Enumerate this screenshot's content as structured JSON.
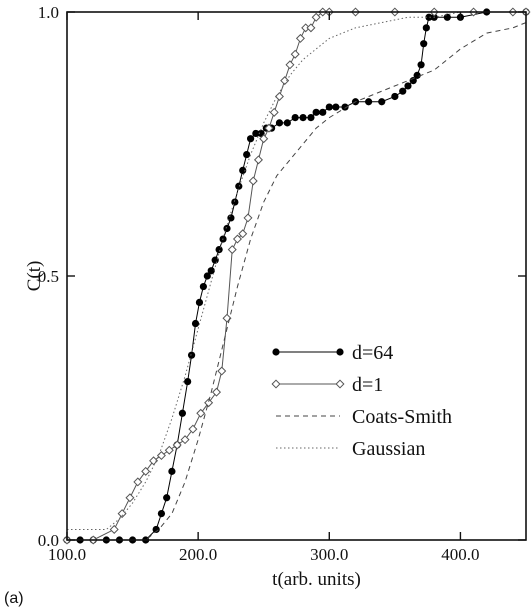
{
  "chart_data": {
    "type": "line",
    "panel_label": "(a)",
    "title": "",
    "xlabel": "t(arb. units)",
    "ylabel": "C(t)",
    "xlim": [
      100,
      450
    ],
    "ylim": [
      0,
      1
    ],
    "xticks": [
      {
        "value": 100,
        "label": "100.0"
      },
      {
        "value": 200,
        "label": "200.0"
      },
      {
        "value": 300,
        "label": "300.0"
      },
      {
        "value": 400,
        "label": "400.0"
      }
    ],
    "yticks": [
      {
        "value": 0,
        "label": "0.0"
      },
      {
        "value": 0.5,
        "label": "0.5"
      },
      {
        "value": 1,
        "label": "1.0"
      }
    ],
    "grid": false,
    "legend_position": "center-right",
    "series": [
      {
        "name": "d=64",
        "style": "filled-circle",
        "color": "#000000",
        "x": [
          100,
          110,
          120,
          130,
          140,
          150,
          160,
          168,
          172,
          176,
          180,
          184,
          188,
          192,
          195,
          198,
          201,
          204,
          207,
          210,
          213,
          216,
          219,
          222,
          225,
          228,
          231,
          234,
          237,
          240,
          244,
          248,
          252,
          256,
          262,
          268,
          274,
          280,
          286,
          290,
          295,
          300,
          305,
          312,
          320,
          330,
          340,
          350,
          356,
          360,
          364,
          367,
          370,
          372,
          374,
          376,
          380,
          390,
          400,
          420,
          450
        ],
        "y": [
          0,
          0,
          0,
          0,
          0,
          0,
          0,
          0.02,
          0.05,
          0.08,
          0.13,
          0.18,
          0.24,
          0.3,
          0.35,
          0.41,
          0.45,
          0.48,
          0.5,
          0.51,
          0.53,
          0.55,
          0.57,
          0.59,
          0.61,
          0.64,
          0.67,
          0.7,
          0.73,
          0.76,
          0.77,
          0.77,
          0.78,
          0.78,
          0.79,
          0.79,
          0.8,
          0.8,
          0.8,
          0.81,
          0.81,
          0.82,
          0.82,
          0.82,
          0.83,
          0.83,
          0.83,
          0.84,
          0.85,
          0.86,
          0.87,
          0.88,
          0.9,
          0.94,
          0.97,
          0.99,
          0.99,
          0.99,
          0.99,
          1.0,
          1.0
        ]
      },
      {
        "name": "d=1",
        "style": "open-diamond",
        "color": "#555555",
        "x": [
          100,
          120,
          136,
          142,
          148,
          154,
          160,
          166,
          172,
          178,
          184,
          190,
          196,
          202,
          208,
          214,
          218,
          222,
          226,
          230,
          234,
          238,
          242,
          246,
          250,
          254,
          258,
          262,
          266,
          270,
          274,
          278,
          282,
          286,
          290,
          295,
          300,
          320,
          350,
          380,
          410,
          440,
          450
        ],
        "y": [
          0,
          0,
          0.02,
          0.05,
          0.08,
          0.11,
          0.13,
          0.15,
          0.16,
          0.17,
          0.18,
          0.19,
          0.21,
          0.24,
          0.26,
          0.28,
          0.32,
          0.42,
          0.55,
          0.57,
          0.58,
          0.61,
          0.68,
          0.72,
          0.76,
          0.78,
          0.81,
          0.84,
          0.87,
          0.9,
          0.92,
          0.95,
          0.97,
          0.97,
          0.99,
          1.0,
          1.0,
          1.0,
          1.0,
          1.0,
          1.0,
          1.0,
          1.0
        ]
      },
      {
        "name": "Coats-Smith",
        "style": "dashed",
        "color": "#444444",
        "x": [
          100,
          120,
          140,
          160,
          170,
          180,
          190,
          200,
          210,
          220,
          230,
          240,
          250,
          260,
          270,
          280,
          290,
          300,
          320,
          340,
          360,
          380,
          400,
          420,
          440,
          450
        ],
        "y": [
          0,
          0,
          0,
          0,
          0.02,
          0.05,
          0.11,
          0.19,
          0.28,
          0.38,
          0.48,
          0.57,
          0.64,
          0.69,
          0.72,
          0.75,
          0.78,
          0.8,
          0.83,
          0.85,
          0.87,
          0.89,
          0.93,
          0.96,
          0.97,
          0.98
        ]
      },
      {
        "name": "Gaussian",
        "style": "dotted",
        "color": "#666666",
        "x": [
          100,
          120,
          130,
          140,
          150,
          160,
          170,
          180,
          190,
          200,
          210,
          220,
          230,
          240,
          250,
          260,
          270,
          280,
          290,
          300,
          320,
          340,
          360,
          380,
          400,
          420,
          450
        ],
        "y": [
          0.02,
          0.02,
          0.02,
          0.04,
          0.07,
          0.11,
          0.16,
          0.23,
          0.31,
          0.4,
          0.49,
          0.58,
          0.66,
          0.73,
          0.79,
          0.84,
          0.88,
          0.91,
          0.93,
          0.95,
          0.97,
          0.98,
          0.99,
          0.99,
          1.0,
          1.0,
          1.0
        ]
      }
    ]
  }
}
